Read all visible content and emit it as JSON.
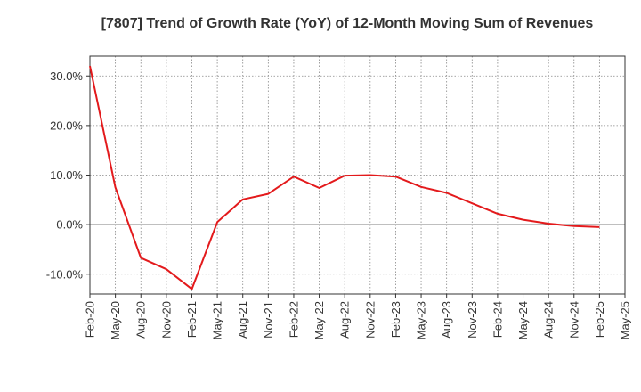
{
  "chart_data": {
    "type": "line",
    "title": "[7807]  Trend of Growth Rate (YoY) of 12-Month Moving Sum of Revenues",
    "xlabel": "",
    "ylabel": "",
    "y_unit": "%",
    "ylim": [
      -14,
      34
    ],
    "y_ticks": [
      -10,
      0,
      10,
      20,
      30
    ],
    "y_tick_labels": [
      "-10.0%",
      "0.0%",
      "10.0%",
      "20.0%",
      "30.0%"
    ],
    "x_tick_labels": [
      "Feb-20",
      "May-20",
      "Aug-20",
      "Nov-20",
      "Feb-21",
      "May-21",
      "Aug-21",
      "Nov-21",
      "Feb-22",
      "May-22",
      "Aug-22",
      "Nov-22",
      "Feb-23",
      "May-23",
      "Aug-23",
      "Nov-23",
      "Feb-24",
      "May-24",
      "Aug-24",
      "Nov-24",
      "Feb-25",
      "May-25"
    ],
    "grid": true,
    "grid_style": "dotted",
    "series": [
      {
        "color": "#e31a1c",
        "x": [
          "Feb-20",
          "May-20",
          "Aug-20",
          "Nov-20",
          "Feb-21",
          "May-21",
          "Aug-21",
          "Nov-21",
          "Feb-22",
          "May-22",
          "Aug-22",
          "Nov-22",
          "Feb-23",
          "May-23",
          "Aug-23",
          "Nov-23",
          "Feb-24",
          "May-24",
          "Aug-24",
          "Nov-24",
          "Feb-25"
        ],
        "values": [
          32.0,
          7.5,
          -6.7,
          -9.0,
          -13.0,
          0.5,
          5.1,
          6.2,
          9.7,
          7.4,
          9.9,
          10.0,
          9.7,
          7.6,
          6.4,
          4.3,
          2.2,
          1.0,
          0.2,
          -0.3,
          -0.5
        ]
      }
    ]
  }
}
